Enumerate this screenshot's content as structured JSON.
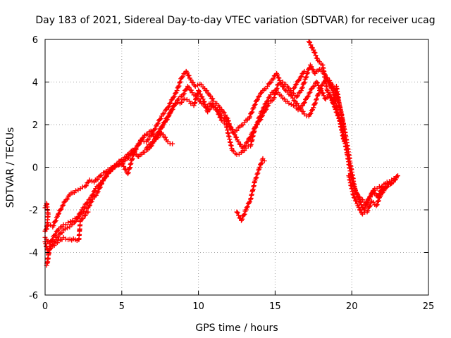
{
  "chart_data": {
    "type": "scatter",
    "title": "Day 183 of 2021, Sidereal Day-to-day VTEC variation (SDTVAR) for receiver ucag",
    "xlabel": "GPS time / hours",
    "ylabel": "SDTVAR / TECUs",
    "xlim": [
      0,
      25
    ],
    "ylim": [
      -6,
      6
    ],
    "xticks": [
      0,
      5,
      10,
      15,
      20,
      25
    ],
    "yticks": [
      -6,
      -4,
      -2,
      0,
      2,
      4,
      6
    ],
    "grid": true,
    "marker": "plus",
    "color": "#ff0000",
    "series": [
      {
        "points": [
          [
            0.0,
            -3.0
          ],
          [
            0.2,
            -2.7
          ],
          [
            0.5,
            -2.8
          ],
          [
            0.8,
            -2.3
          ],
          [
            1.0,
            -2.0
          ],
          [
            1.3,
            -1.6
          ],
          [
            1.6,
            -1.3
          ],
          [
            2.0,
            -1.1
          ],
          [
            2.3,
            -1.0
          ],
          [
            2.6,
            -0.9
          ],
          [
            2.9,
            -0.6
          ],
          [
            3.2,
            -0.7
          ],
          [
            3.6,
            -0.4
          ],
          [
            4.0,
            -0.2
          ],
          [
            4.4,
            0.0
          ],
          [
            4.8,
            0.1
          ],
          [
            5.2,
            0.3
          ],
          [
            5.6,
            0.6
          ],
          [
            6.0,
            1.0
          ],
          [
            6.3,
            1.3
          ],
          [
            6.6,
            1.2
          ],
          [
            7.0,
            1.6
          ],
          [
            7.3,
            2.0
          ],
          [
            7.6,
            2.4
          ],
          [
            8.0,
            2.8
          ],
          [
            8.3,
            3.2
          ],
          [
            8.6,
            3.6
          ],
          [
            8.9,
            4.2
          ],
          [
            9.2,
            4.5
          ],
          [
            9.5,
            4.1
          ],
          [
            9.8,
            3.8
          ],
          [
            10.1,
            3.9
          ],
          [
            10.4,
            3.7
          ],
          [
            10.7,
            3.4
          ],
          [
            11.0,
            3.1
          ],
          [
            11.3,
            2.9
          ],
          [
            11.6,
            2.6
          ],
          [
            11.9,
            2.3
          ],
          [
            12.1,
            1.8
          ],
          [
            12.4,
            1.7
          ],
          [
            12.7,
            1.9
          ],
          [
            13.0,
            2.1
          ],
          [
            13.3,
            2.3
          ],
          [
            13.6,
            2.8
          ],
          [
            13.9,
            3.3
          ],
          [
            14.2,
            3.6
          ],
          [
            14.5,
            3.8
          ],
          [
            14.8,
            4.1
          ],
          [
            15.1,
            4.4
          ],
          [
            15.4,
            3.9
          ],
          [
            15.7,
            3.6
          ],
          [
            16.0,
            3.4
          ],
          [
            16.3,
            3.1
          ],
          [
            16.6,
            2.8
          ],
          [
            16.9,
            2.5
          ],
          [
            17.2,
            2.4
          ],
          [
            17.5,
            2.8
          ],
          [
            17.8,
            3.4
          ],
          [
            18.1,
            3.9
          ],
          [
            18.4,
            4.2
          ],
          [
            18.7,
            3.9
          ],
          [
            19.0,
            3.5
          ],
          [
            19.3,
            2.6
          ],
          [
            19.6,
            1.5
          ],
          [
            19.9,
            0.2
          ],
          [
            20.2,
            -1.0
          ],
          [
            20.5,
            -1.6
          ],
          [
            20.8,
            -2.0
          ],
          [
            21.1,
            -1.5
          ],
          [
            21.4,
            -1.1
          ],
          [
            21.7,
            -1.4
          ],
          [
            22.0,
            -0.9
          ],
          [
            22.3,
            -0.7
          ],
          [
            22.6,
            -0.6
          ],
          [
            22.9,
            -0.5
          ]
        ]
      },
      {
        "points": [
          [
            0.0,
            -3.3
          ],
          [
            0.3,
            -3.6
          ],
          [
            0.6,
            -3.2
          ],
          [
            0.9,
            -2.9
          ],
          [
            1.2,
            -2.7
          ],
          [
            1.5,
            -2.6
          ],
          [
            1.8,
            -2.5
          ],
          [
            2.1,
            -2.4
          ],
          [
            2.4,
            -2.0
          ],
          [
            2.7,
            -1.7
          ],
          [
            3.0,
            -1.4
          ],
          [
            3.3,
            -1.0
          ],
          [
            3.7,
            -0.7
          ],
          [
            4.1,
            -0.3
          ],
          [
            4.5,
            0.0
          ],
          [
            4.9,
            0.3
          ],
          [
            5.3,
            0.5
          ],
          [
            5.7,
            0.8
          ],
          [
            6.1,
            0.5
          ],
          [
            6.4,
            0.7
          ],
          [
            6.8,
            0.9
          ],
          [
            7.1,
            1.2
          ],
          [
            7.4,
            1.6
          ],
          [
            7.7,
            2.0
          ],
          [
            8.1,
            2.5
          ],
          [
            8.4,
            2.9
          ],
          [
            8.7,
            3.2
          ],
          [
            9.0,
            3.4
          ],
          [
            9.3,
            3.8
          ],
          [
            9.6,
            3.5
          ],
          [
            9.9,
            3.3
          ],
          [
            10.2,
            3.0
          ],
          [
            10.5,
            2.8
          ],
          [
            10.8,
            3.0
          ],
          [
            11.1,
            2.8
          ],
          [
            11.4,
            2.5
          ],
          [
            11.7,
            2.3
          ],
          [
            12.0,
            2.0
          ],
          [
            12.3,
            1.6
          ],
          [
            12.6,
            1.2
          ],
          [
            12.9,
            0.9
          ],
          [
            13.2,
            1.2
          ],
          [
            13.5,
            1.6
          ],
          [
            13.8,
            2.0
          ],
          [
            14.1,
            2.6
          ],
          [
            14.4,
            3.0
          ],
          [
            14.7,
            3.4
          ],
          [
            15.0,
            3.6
          ],
          [
            15.3,
            3.4
          ],
          [
            15.6,
            3.2
          ],
          [
            15.9,
            3.0
          ],
          [
            16.2,
            2.9
          ],
          [
            16.5,
            2.7
          ],
          [
            16.8,
            2.9
          ],
          [
            17.1,
            3.3
          ],
          [
            17.4,
            3.7
          ],
          [
            17.7,
            4.0
          ],
          [
            18.0,
            3.6
          ],
          [
            18.3,
            3.2
          ],
          [
            18.6,
            3.4
          ],
          [
            18.9,
            2.8
          ],
          [
            19.2,
            2.2
          ],
          [
            19.5,
            1.2
          ],
          [
            19.8,
            -0.4
          ],
          [
            20.1,
            -1.3
          ],
          [
            20.4,
            -1.8
          ],
          [
            20.7,
            -2.2
          ],
          [
            21.0,
            -2.1
          ],
          [
            21.3,
            -1.6
          ],
          [
            21.6,
            -1.8
          ],
          [
            21.9,
            -1.3
          ],
          [
            22.2,
            -0.9
          ],
          [
            22.5,
            -0.8
          ],
          [
            22.8,
            -0.6
          ]
        ]
      },
      {
        "points": [
          [
            0.0,
            -3.5
          ],
          [
            0.2,
            -4.0
          ],
          [
            0.4,
            -3.7
          ],
          [
            0.7,
            -3.4
          ],
          [
            1.0,
            -3.1
          ],
          [
            1.3,
            -2.9
          ],
          [
            1.6,
            -2.8
          ],
          [
            1.9,
            -2.6
          ],
          [
            2.2,
            -2.3
          ],
          [
            2.5,
            -2.1
          ],
          [
            2.8,
            -1.9
          ],
          [
            3.1,
            -1.5
          ],
          [
            3.4,
            -1.2
          ],
          [
            3.8,
            -0.6
          ],
          [
            4.2,
            -0.2
          ],
          [
            4.6,
            0.1
          ],
          [
            5.0,
            0.2
          ],
          [
            5.4,
            -0.3
          ],
          [
            5.8,
            0.7
          ],
          [
            6.2,
            1.2
          ],
          [
            6.5,
            1.5
          ],
          [
            6.9,
            1.7
          ],
          [
            7.2,
            1.4
          ],
          [
            7.5,
            1.8
          ],
          [
            7.9,
            2.2
          ],
          [
            8.2,
            2.6
          ],
          [
            8.5,
            3.0
          ],
          [
            8.8,
            3.0
          ],
          [
            9.1,
            3.2
          ],
          [
            9.4,
            3.1
          ],
          [
            9.7,
            2.9
          ],
          [
            10.0,
            3.6
          ],
          [
            10.3,
            3.2
          ],
          [
            10.6,
            2.6
          ],
          [
            10.9,
            2.9
          ],
          [
            11.2,
            2.7
          ],
          [
            11.5,
            2.2
          ],
          [
            11.8,
            2.0
          ],
          [
            12.2,
            0.8
          ],
          [
            12.5,
            0.6
          ],
          [
            12.8,
            0.7
          ],
          [
            13.1,
            0.9
          ],
          [
            13.4,
            1.0
          ],
          [
            13.7,
            1.9
          ],
          [
            14.0,
            2.2
          ],
          [
            14.3,
            2.6
          ],
          [
            14.6,
            3.0
          ],
          [
            14.9,
            3.2
          ],
          [
            15.2,
            3.9
          ],
          [
            15.5,
            4.0
          ],
          [
            15.8,
            3.8
          ],
          [
            16.1,
            3.5
          ],
          [
            16.4,
            3.3
          ],
          [
            16.7,
            3.6
          ],
          [
            17.0,
            4.2
          ],
          [
            17.3,
            4.8
          ],
          [
            17.6,
            4.4
          ],
          [
            17.9,
            4.6
          ],
          [
            18.2,
            4.4
          ],
          [
            18.5,
            4.0
          ],
          [
            18.8,
            3.5
          ],
          [
            19.1,
            2.5
          ],
          [
            19.4,
            1.8
          ],
          [
            19.7,
            0.6
          ],
          [
            20.0,
            -0.6
          ],
          [
            20.3,
            -1.2
          ],
          [
            20.6,
            -1.5
          ],
          [
            20.9,
            -1.7
          ],
          [
            21.2,
            -1.4
          ],
          [
            21.5,
            -1.0
          ],
          [
            21.8,
            -0.9
          ],
          [
            22.1,
            -1.1
          ],
          [
            22.4,
            -0.8
          ],
          [
            22.7,
            -0.7
          ],
          [
            23.0,
            -0.4
          ]
        ]
      },
      {
        "points": [
          [
            0.0,
            -1.9
          ],
          [
            0.1,
            -1.7
          ],
          [
            0.2,
            -2.2
          ],
          [
            0.1,
            -2.9
          ],
          [
            0.2,
            -4.3
          ],
          [
            0.1,
            -4.6
          ],
          [
            0.3,
            -3.8
          ],
          [
            1.2,
            -3.3
          ],
          [
            1.5,
            -3.4
          ],
          [
            2.2,
            -3.4
          ],
          [
            2.3,
            -2.5
          ],
          [
            2.8,
            -2.1
          ],
          [
            6.6,
            0.9
          ],
          [
            7.6,
            1.6
          ],
          [
            8.0,
            1.2
          ],
          [
            8.3,
            1.1
          ],
          [
            12.5,
            -2.1
          ],
          [
            12.8,
            -2.5
          ],
          [
            13.1,
            -2.0
          ],
          [
            13.4,
            -1.5
          ],
          [
            13.7,
            -0.6
          ],
          [
            14.0,
            0.0
          ],
          [
            14.2,
            0.4
          ],
          [
            14.3,
            0.3
          ],
          [
            16.2,
            3.7
          ],
          [
            16.9,
            4.5
          ],
          [
            17.2,
            5.9
          ],
          [
            17.5,
            5.5
          ],
          [
            17.8,
            5.0
          ],
          [
            18.1,
            4.8
          ],
          [
            18.4,
            3.6
          ],
          [
            18.8,
            3.0
          ],
          [
            19.0,
            3.8
          ],
          [
            19.2,
            2.9
          ],
          [
            19.5,
            1.8
          ]
        ]
      }
    ]
  }
}
